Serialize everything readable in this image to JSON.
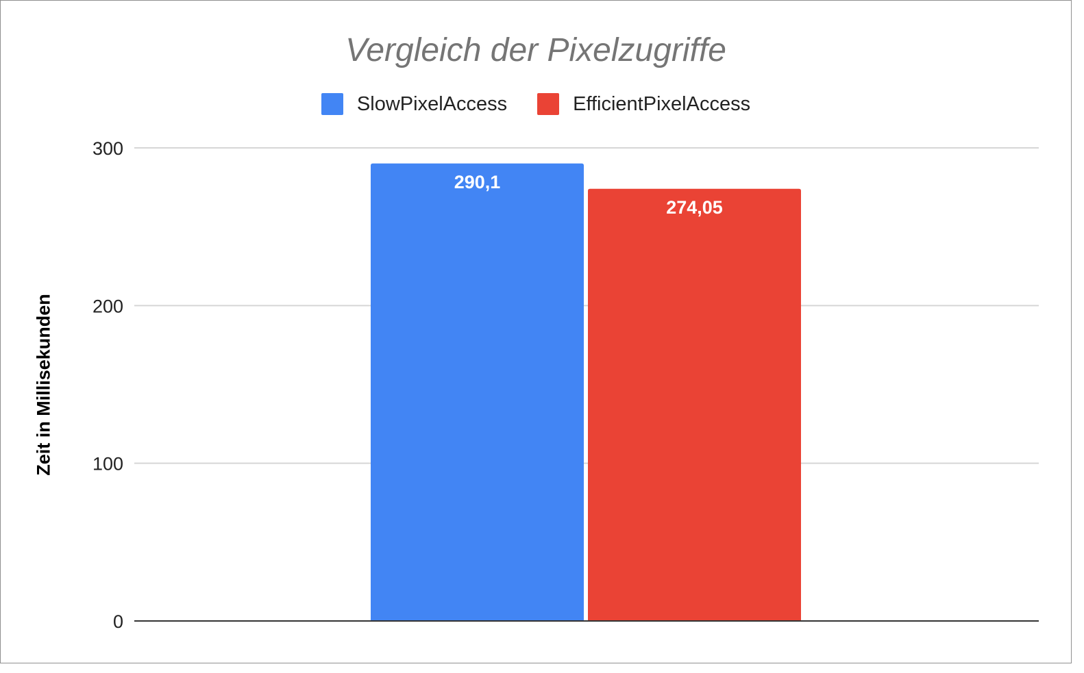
{
  "chart_data": {
    "type": "bar",
    "title": "Vergleich der Pixelzugriffe",
    "xlabel": "",
    "ylabel": "Zeit in Millisekunden",
    "ylim": [
      0,
      300
    ],
    "yticks": [
      0,
      100,
      200,
      300
    ],
    "categories": [
      ""
    ],
    "grid": true,
    "legend_position": "top",
    "series": [
      {
        "name": "SlowPixelAccess",
        "values": [
          290.1
        ],
        "value_label": "290,1",
        "color": "#4285f4"
      },
      {
        "name": "EfficientPixelAccess",
        "values": [
          274.05
        ],
        "value_label": "274,05",
        "color": "#ea4335"
      }
    ]
  }
}
